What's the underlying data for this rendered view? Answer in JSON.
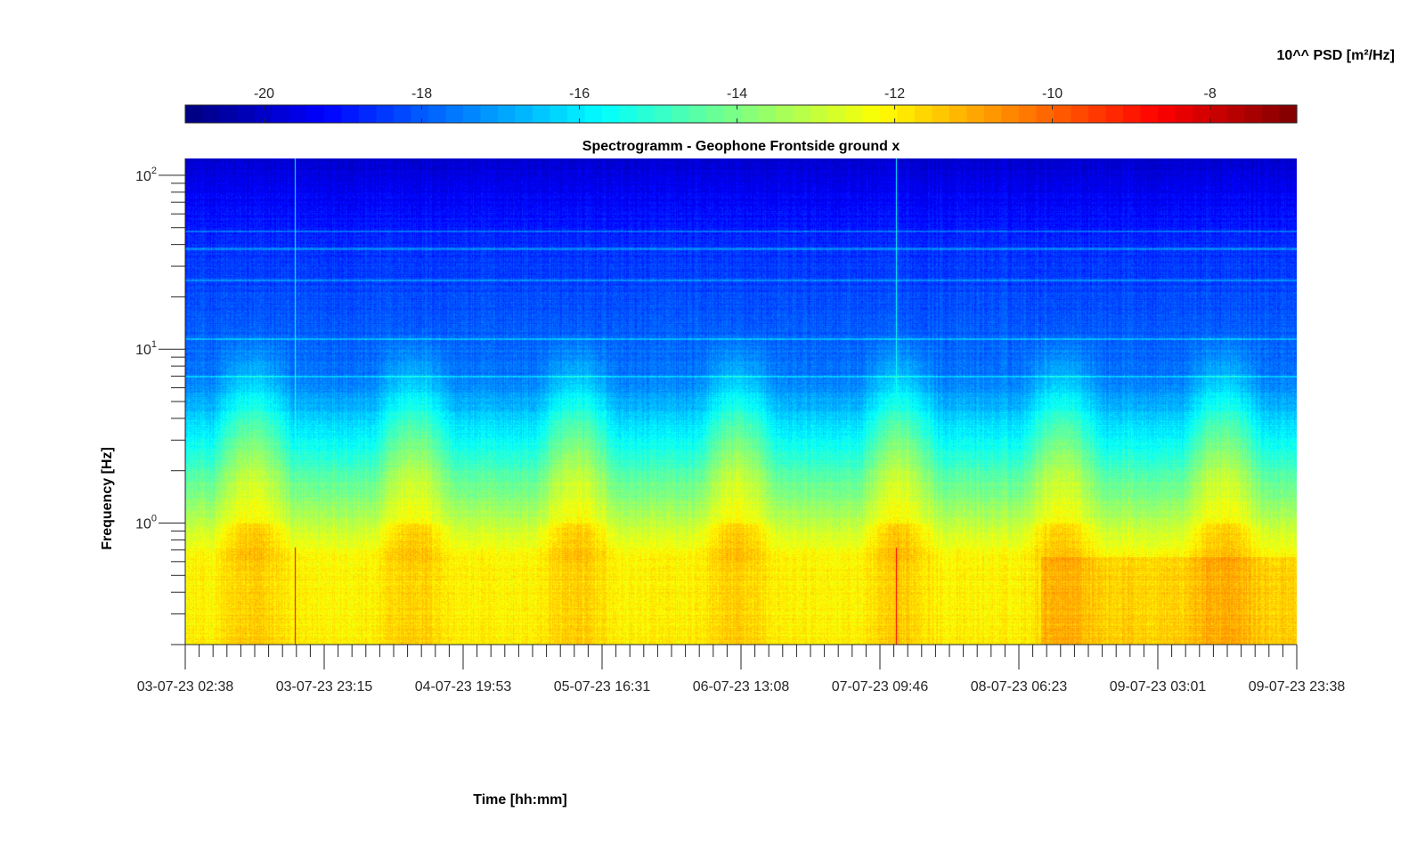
{
  "chart_data": {
    "type": "heatmap",
    "title": "Spectrogramm - Geophone Frontside ground x",
    "xlabel": "Time [hh:mm]",
    "ylabel": "Frequency [Hz]",
    "colorbar_label": "10^^ PSD [m²/Hz]",
    "colormap": "jet",
    "colorbar_range": [
      -21,
      -6.9
    ],
    "colorbar_ticks": [
      "-20",
      "-18",
      "-16",
      "-14",
      "-12",
      "-10",
      "-8"
    ],
    "colorbar_tick_values": [
      -20,
      -18,
      -16,
      -14,
      -12,
      -10,
      -8
    ],
    "y_scale": "log",
    "ylim": [
      0.2,
      125
    ],
    "y_ticks": [
      {
        "base": "10",
        "exp": "2",
        "value": 100
      },
      {
        "base": "10",
        "exp": "1",
        "value": 10
      },
      {
        "base": "10",
        "exp": "0",
        "value": 1
      }
    ],
    "x_range_hours": [
      0,
      165
    ],
    "x_tick_labels": [
      "03-07-23 02:38",
      "03-07-23 23:15",
      "04-07-23 19:53",
      "05-07-23 16:31",
      "06-07-23 13:08",
      "07-07-23 09:46",
      "08-07-23 06:23",
      "09-07-23 03:01",
      "09-07-23 23:38"
    ],
    "bands": {
      "low_freq_level_range": [
        -12.6,
        -11.5
      ],
      "high_freq_level_range": [
        -20,
        -19
      ],
      "broadband_spike_times": [
        "03-07-23 18:50",
        "07-07-23 12:10"
      ],
      "hum_line_frequencies_hz": [
        7,
        11.5,
        25,
        38,
        48
      ]
    }
  }
}
